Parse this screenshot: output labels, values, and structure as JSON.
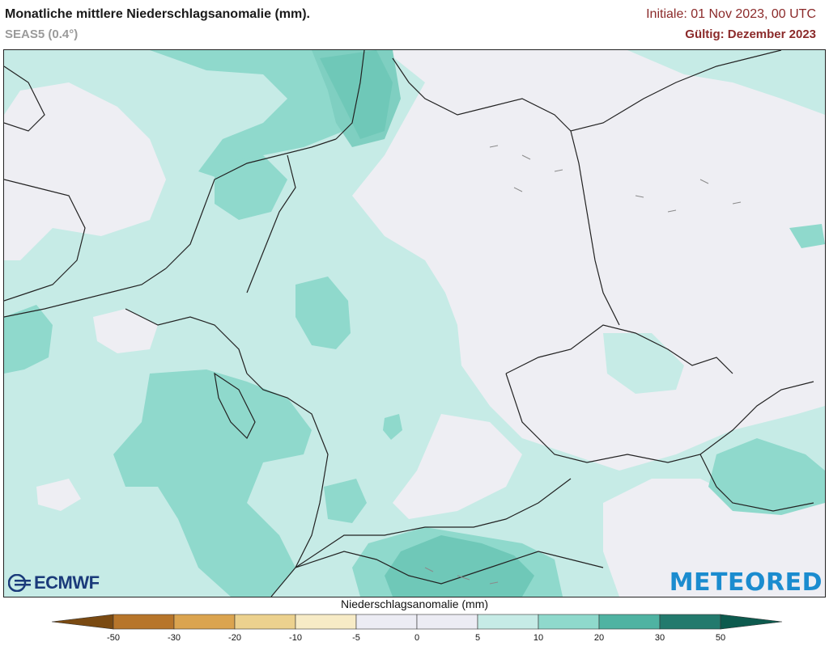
{
  "header": {
    "title": "Monatliche mittlere Niederschlagsanomalie (mm).",
    "subtitle": "SEAS5 (0.4°)",
    "initial": "Initiale: 01 Nov 2023, 00 UTC",
    "valid": "Gültig: Dezember 2023"
  },
  "logos": {
    "ecmwf": "ECMWF",
    "meteored": "METEORED"
  },
  "colorbar": {
    "title": "Niederschlagsanomalie (mm)",
    "ticks": [
      "-50",
      "-30",
      "-20",
      "-10",
      "-5",
      "0",
      "5",
      "10",
      "20",
      "30",
      "50"
    ],
    "colors": [
      "#7a4a12",
      "#b7752a",
      "#dba44f",
      "#ecd18e",
      "#f7ebc6",
      "#ececf4",
      "#ececf4",
      "#c6ebe6",
      "#8fd9cc",
      "#4fb3a2",
      "#237a6d",
      "#0d5a4e"
    ]
  },
  "map_colors": {
    "background": "#eeeef3",
    "class_5_10": "#c6ebe6",
    "class_10_20": "#8fd9cc",
    "class_20_30": "#6fc8b8",
    "border": "#222222",
    "lake": "#8a8a8a"
  }
}
